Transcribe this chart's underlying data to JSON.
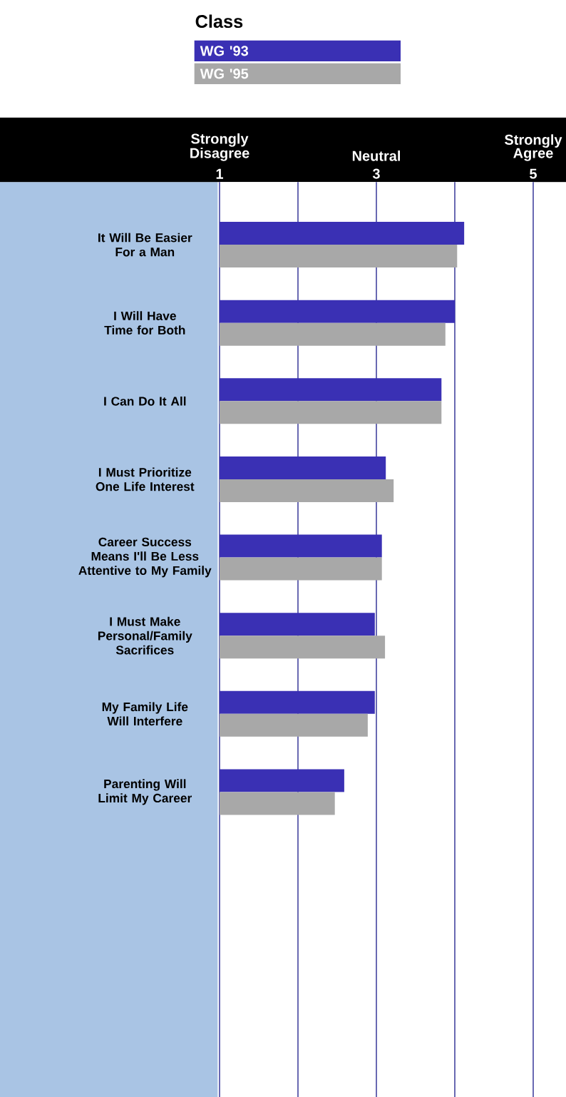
{
  "chart_data": {
    "type": "bar",
    "orientation": "horizontal",
    "legend_title": "Class",
    "legend": "top",
    "grid": "x",
    "categories": [
      "It Will Be Easier For a Man",
      "I Will Have Time for Both",
      "I Can Do It All",
      "I Must Prioritize One Life Interest",
      "Career Success Means I'll Be Less Attentive to My Family",
      "I Must Make Personal/Family Sacrifices",
      "My Family Life Will Interfere",
      "Parenting Will Limit My Career"
    ],
    "series": [
      {
        "name": "WG '93",
        "color": "#3a30b4",
        "values": [
          4.12,
          4.0,
          3.83,
          3.12,
          3.07,
          2.98,
          2.98,
          2.59
        ]
      },
      {
        "name": "WG '95",
        "color": "#a8a8a8",
        "values": [
          4.03,
          3.88,
          3.83,
          3.22,
          3.07,
          3.11,
          2.89,
          2.47
        ]
      }
    ],
    "xlim": [
      1,
      5
    ],
    "xticks": [
      1,
      {
        "value": 2,
        "label": null
      },
      3,
      {
        "value": 4,
        "label": null
      },
      5
    ],
    "annotations": [
      "Strongly Disagree",
      "Neutral",
      "Strongly Agree"
    ]
  }
}
